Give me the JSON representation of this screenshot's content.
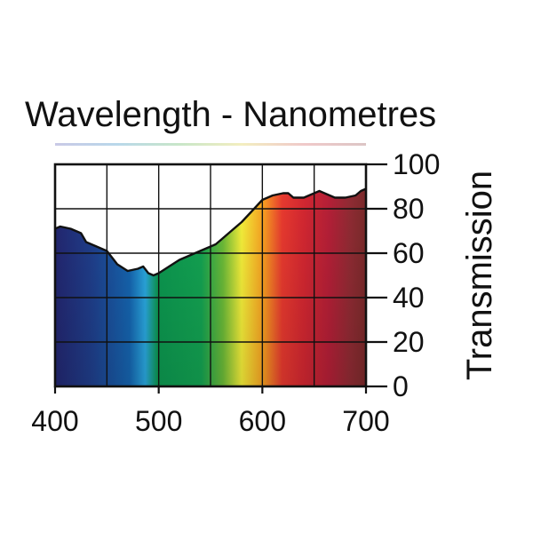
{
  "chart_data": {
    "type": "area",
    "title": "Wavelength - Nanometres",
    "xlabel": "",
    "ylabel": "Transmission",
    "xlim": [
      400,
      700
    ],
    "ylim": [
      0,
      100
    ],
    "x_ticks": [
      400,
      500,
      600,
      700
    ],
    "y_ticks": [
      0,
      20,
      40,
      60,
      80,
      100
    ],
    "grid": true,
    "fill": "visible spectrum gradient",
    "spectrum_colors": [
      "#232670",
      "#1f3f8c",
      "#1565b0",
      "#2aa8e0",
      "#0c9850",
      "#13a352",
      "#6cbb38",
      "#f5ef3a",
      "#f8a021",
      "#e83a2f",
      "#d32731",
      "#b51f37",
      "#8f2b33",
      "#7a2a2a"
    ],
    "series": [
      {
        "x": [
          400,
          405,
          415,
          425,
          430,
          440,
          450,
          455,
          460,
          470,
          480,
          485,
          490,
          495,
          500,
          510,
          520,
          530,
          540,
          550,
          555,
          560,
          570,
          580,
          590,
          600,
          610,
          620,
          625,
          630,
          640,
          650,
          655,
          660,
          670,
          680,
          690,
          695,
          700
        ],
        "y": [
          71,
          72,
          71,
          69,
          65,
          63,
          61,
          58,
          55,
          52,
          53,
          54,
          51,
          50,
          51,
          54,
          57,
          59,
          61,
          63,
          64,
          66,
          70,
          74,
          79,
          84,
          86,
          87,
          87,
          85,
          85,
          87,
          88,
          87,
          85,
          85,
          86,
          88,
          89
        ]
      }
    ]
  }
}
